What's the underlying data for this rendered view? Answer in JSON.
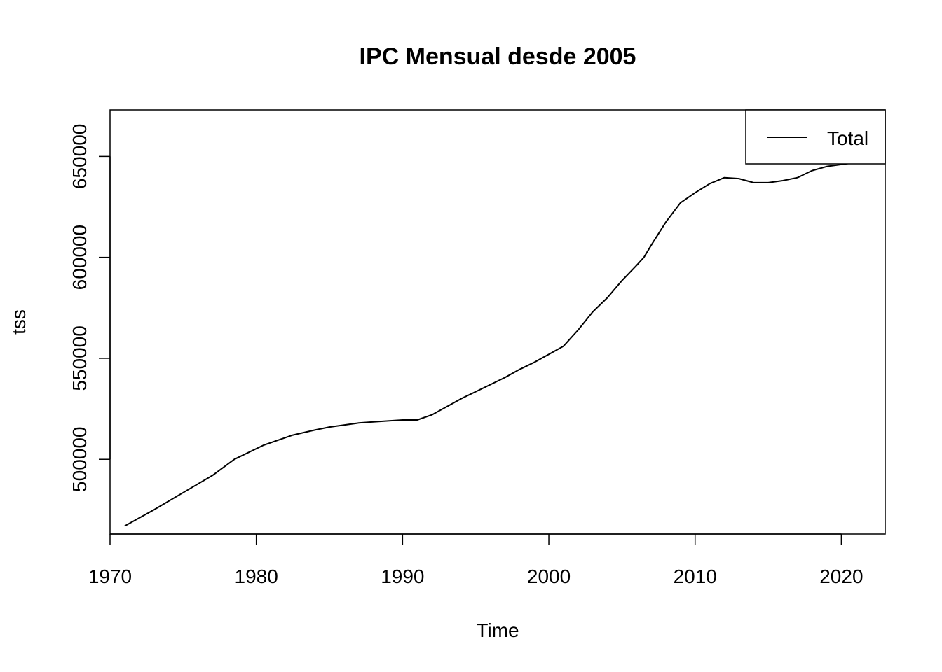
{
  "chart_data": {
    "type": "line",
    "title": "IPC Mensual desde 2005",
    "xlabel": "Time",
    "ylabel": "tss",
    "xlim": [
      1970,
      2023
    ],
    "ylim": [
      463000,
      673000
    ],
    "xticks": [
      1970,
      1980,
      1990,
      2000,
      2010,
      2020
    ],
    "xtick_labels": [
      "1970",
      "1980",
      "1990",
      "2000",
      "2010",
      "2020"
    ],
    "yticks": [
      500000,
      550000,
      600000,
      650000
    ],
    "ytick_labels": [
      "500000",
      "550000",
      "600000",
      "650000"
    ],
    "grid": false,
    "legend": {
      "placement": "top-right",
      "entries": [
        "Total"
      ]
    },
    "series": [
      {
        "name": "Total",
        "color": "#000000",
        "x": [
          1971,
          1973,
          1975,
          1977,
          1978.5,
          1980.5,
          1982.5,
          1984,
          1985,
          1986,
          1987,
          1988,
          1989,
          1990,
          1991,
          1992,
          1993,
          1994,
          1995,
          1996,
          1997,
          1998,
          1999,
          2000,
          2001,
          2002,
          2003,
          2004,
          2005,
          2006,
          2006.5,
          2007,
          2008,
          2009,
          2010,
          2011,
          2012,
          2013,
          2014,
          2015,
          2016,
          2017,
          2018,
          2019,
          2020,
          2021,
          2022.5
        ],
        "y": [
          467000,
          475000,
          483500,
          492000,
          500000,
          507000,
          512000,
          514500,
          516000,
          517000,
          518000,
          518500,
          519000,
          519500,
          519500,
          522000,
          526000,
          530000,
          533500,
          537000,
          540500,
          544500,
          548000,
          552000,
          556000,
          564000,
          573000,
          580000,
          588500,
          596000,
          600000,
          606000,
          617500,
          627000,
          632000,
          636500,
          639500,
          639000,
          637000,
          637000,
          638000,
          639500,
          643000,
          645000,
          646000,
          647000,
          648000
        ]
      }
    ]
  }
}
